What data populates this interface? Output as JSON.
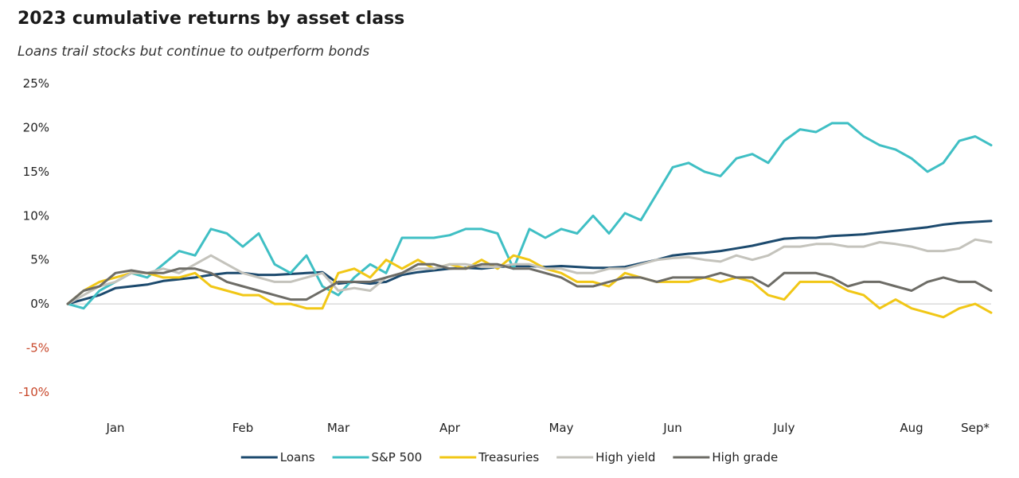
{
  "chart_data": {
    "type": "line",
    "title": "2023 cumulative returns by asset class",
    "subtitle": "Loans trail stocks but continue to outperform bonds",
    "categories": [
      null,
      null,
      null,
      "Jan",
      null,
      null,
      null,
      null,
      null,
      null,
      null,
      "Feb",
      null,
      null,
      null,
      null,
      null,
      "Mar",
      null,
      null,
      null,
      null,
      null,
      null,
      "Apr",
      null,
      null,
      null,
      null,
      null,
      null,
      "May",
      null,
      null,
      null,
      null,
      null,
      null,
      "Jun",
      null,
      null,
      null,
      null,
      null,
      null,
      "July",
      null,
      null,
      null,
      null,
      null,
      null,
      null,
      "Aug",
      null,
      null,
      null,
      "Sep*",
      null
    ],
    "ylim": [
      -10,
      25
    ],
    "yticks": [
      {
        "value": -10,
        "label": "-10%"
      },
      {
        "value": -5,
        "label": "-5%"
      },
      {
        "value": 0,
        "label": "0%"
      },
      {
        "value": 5,
        "label": "5%"
      },
      {
        "value": 10,
        "label": "10%"
      },
      {
        "value": 15,
        "label": "15%"
      },
      {
        "value": 20,
        "label": "20%"
      },
      {
        "value": 25,
        "label": "25%"
      }
    ],
    "legend": "bottom",
    "series": [
      {
        "name": "Loans",
        "color": "#1c4a6e",
        "values": [
          0,
          0.5,
          1.0,
          1.8,
          2.0,
          2.2,
          2.6,
          2.8,
          3.0,
          3.3,
          3.5,
          3.5,
          3.3,
          3.3,
          3.4,
          3.5,
          3.6,
          2.3,
          2.5,
          2.3,
          2.5,
          3.3,
          3.6,
          3.8,
          4.0,
          4.1,
          4.0,
          4.2,
          4.3,
          4.3,
          4.2,
          4.3,
          4.2,
          4.1,
          4.1,
          4.2,
          4.6,
          5.0,
          5.5,
          5.7,
          5.8,
          6.0,
          6.3,
          6.6,
          7.0,
          7.4,
          7.5,
          7.5,
          7.7,
          7.8,
          7.9,
          8.1,
          8.3,
          8.5,
          8.7,
          9.0,
          9.2,
          9.3,
          9.4
        ]
      },
      {
        "name": "S&P 500",
        "color": "#3fbfc4",
        "values": [
          0,
          -0.5,
          1.5,
          2.5,
          3.5,
          3.0,
          4.5,
          6.0,
          5.5,
          8.5,
          8.0,
          6.5,
          8.0,
          4.5,
          3.5,
          5.5,
          2.0,
          1.0,
          3.0,
          4.5,
          3.5,
          7.5,
          7.5,
          7.5,
          7.8,
          8.5,
          8.5,
          8.0,
          4.0,
          8.5,
          7.5,
          8.5,
          8.0,
          10.0,
          8.0,
          10.3,
          9.5,
          12.5,
          15.5,
          16.0,
          15.0,
          14.5,
          16.5,
          17.0,
          16.0,
          18.5,
          19.8,
          19.5,
          20.5,
          20.5,
          19.0,
          18.0,
          17.5,
          16.5,
          15.0,
          16.0,
          18.5,
          19.0,
          18.0
        ]
      },
      {
        "name": "Treasuries",
        "color": "#f1c716",
        "values": [
          0,
          1.5,
          2.5,
          3.0,
          3.5,
          3.5,
          3.0,
          3.0,
          3.5,
          2.0,
          1.5,
          1.0,
          1.0,
          0.0,
          0.0,
          -0.5,
          -0.5,
          3.5,
          4.0,
          3.0,
          5.0,
          4.0,
          5.0,
          4.0,
          4.5,
          4.0,
          5.0,
          4.0,
          5.5,
          5.0,
          4.0,
          3.5,
          2.5,
          2.5,
          2.0,
          3.5,
          3.0,
          2.5,
          2.5,
          2.5,
          3.0,
          2.5,
          3.0,
          2.5,
          1.0,
          0.5,
          2.5,
          2.5,
          2.5,
          1.5,
          1.0,
          -0.5,
          0.5,
          -0.5,
          -1.0,
          -1.5,
          -0.5,
          0.0,
          -1.0
        ]
      },
      {
        "name": "High yield",
        "color": "#c4c3bc",
        "values": [
          0,
          1.0,
          2.0,
          2.5,
          3.5,
          3.5,
          4.0,
          3.5,
          4.5,
          5.5,
          4.5,
          3.5,
          3.0,
          2.5,
          2.5,
          3.0,
          3.5,
          1.5,
          1.8,
          1.5,
          3.0,
          3.5,
          4.0,
          4.0,
          4.5,
          4.5,
          4.2,
          4.2,
          4.5,
          4.5,
          4.0,
          4.0,
          3.5,
          3.5,
          4.0,
          4.0,
          4.5,
          5.0,
          5.2,
          5.3,
          5.0,
          4.8,
          5.5,
          5.0,
          5.5,
          6.5,
          6.5,
          6.8,
          6.8,
          6.5,
          6.5,
          7.0,
          6.8,
          6.5,
          6.0,
          6.0,
          6.3,
          7.3,
          7.0
        ]
      },
      {
        "name": "High grade",
        "color": "#6d6c66",
        "values": [
          0,
          1.5,
          2.0,
          3.5,
          3.8,
          3.5,
          3.5,
          4.0,
          4.0,
          3.5,
          2.5,
          2.0,
          1.5,
          1.0,
          0.5,
          0.5,
          1.5,
          2.5,
          2.5,
          2.5,
          3.0,
          3.5,
          4.5,
          4.5,
          4.0,
          4.0,
          4.5,
          4.5,
          4.0,
          4.0,
          3.5,
          3.0,
          2.0,
          2.0,
          2.5,
          3.0,
          3.0,
          2.5,
          3.0,
          3.0,
          3.0,
          3.5,
          3.0,
          3.0,
          2.0,
          3.5,
          3.5,
          3.5,
          3.0,
          2.0,
          2.5,
          2.5,
          2.0,
          1.5,
          2.5,
          3.0,
          2.5,
          2.5,
          1.5
        ]
      }
    ]
  }
}
